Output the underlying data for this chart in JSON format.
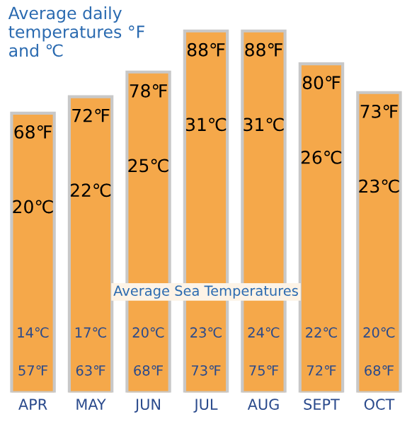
{
  "chart_data": {
    "type": "bar",
    "title": "Average daily temperatures °F and ℃",
    "categories": [
      "APR",
      "MAY",
      "JUN",
      "JUL",
      "AUG",
      "SEPT",
      "OCT"
    ],
    "series": [
      {
        "color": "#f5a84a",
        "values": [
          68,
          72,
          78,
          88,
          88,
          80,
          73
        ],
        "value_labels": [
          "68℉",
          "72℉",
          "78℉",
          "88℉",
          "88℉",
          "80℉",
          "73℉"
        ]
      }
    ],
    "tick_labels": "x",
    "grid": false,
    "annotations": [
      "Average Sea Temperatures",
      "20℃",
      "22℃",
      "25℃",
      "31℃",
      "31℃",
      "26℃",
      "23℃",
      "14℃",
      "17℃",
      "20℃",
      "23℃",
      "24℃",
      "22℃",
      "20℃",
      "57℉",
      "63℉",
      "68℉",
      "73℉",
      "75℉",
      "72℉",
      "68℉"
    ]
  }
}
